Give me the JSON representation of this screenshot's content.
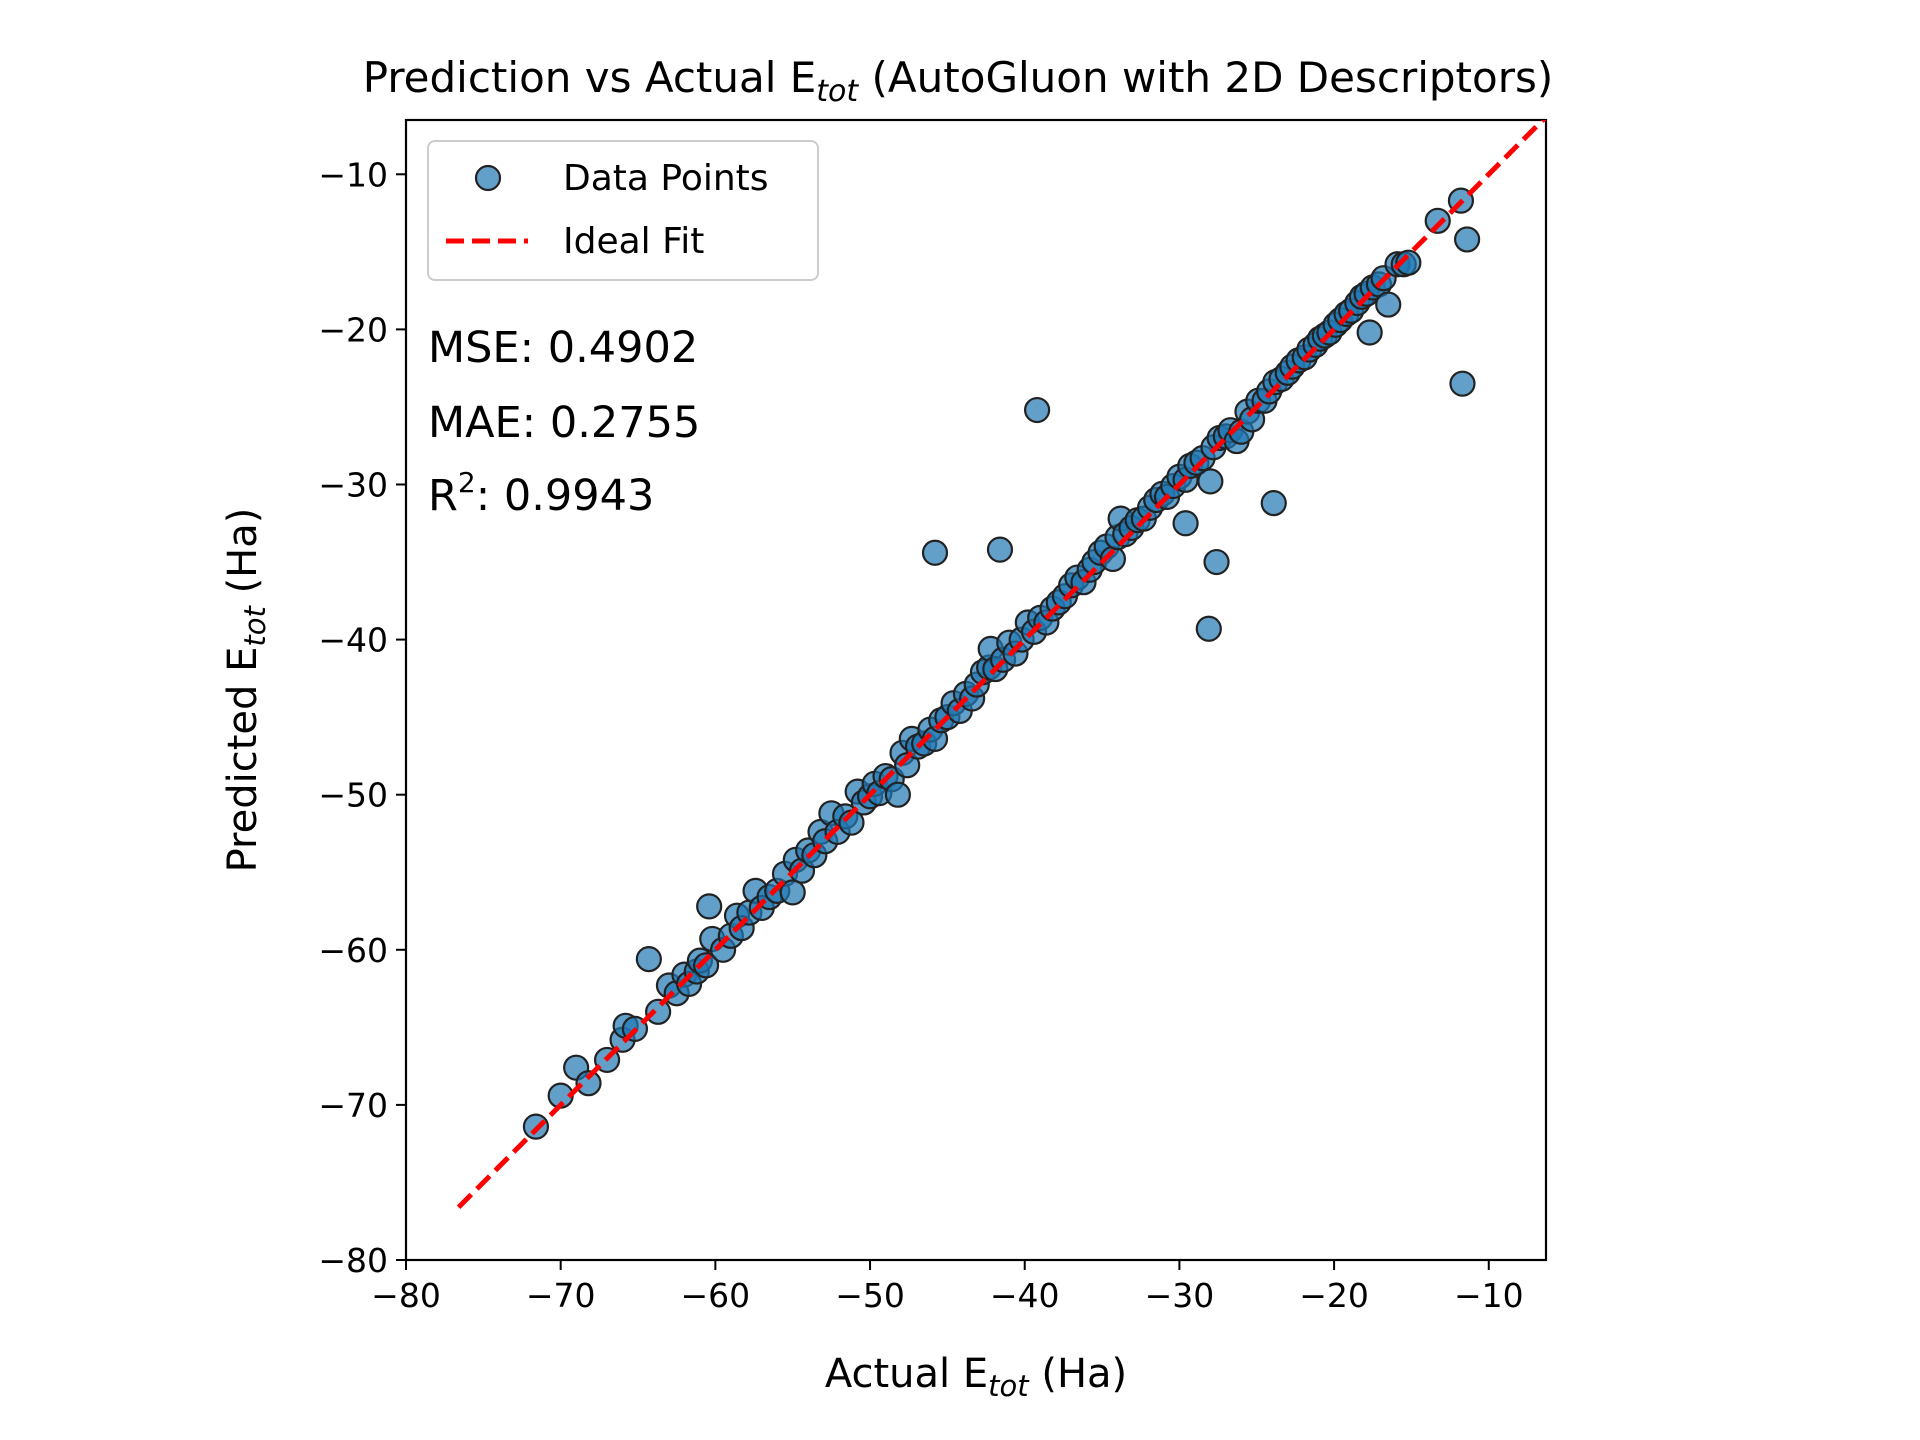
{
  "chart_data": {
    "type": "scatter",
    "title": {
      "main": "Prediction vs Actual E",
      "sub": "tot",
      "rest": " (AutoGluon with 2D Descriptors)"
    },
    "xlabel": {
      "main": "Actual E",
      "sub": "tot",
      "rest": " (Ha)"
    },
    "ylabel": {
      "main": "Predicted E",
      "sub": "tot",
      "rest": " (Ha)"
    },
    "xlim": [
      -80,
      -6.3
    ],
    "ylim": [
      -80,
      -6.5
    ],
    "xticks": [
      -80,
      -70,
      -60,
      -50,
      -40,
      -30,
      -20,
      -10
    ],
    "yticks": [
      -80,
      -70,
      -60,
      -50,
      -40,
      -30,
      -20,
      -10
    ],
    "xtick_labels": [
      "−80",
      "−70",
      "−60",
      "−50",
      "−40",
      "−30",
      "−20",
      "−10"
    ],
    "ytick_labels": [
      "−80",
      "−70",
      "−60",
      "−50",
      "−40",
      "−30",
      "−20",
      "−10"
    ],
    "grid": false,
    "legend": {
      "position": "top-left",
      "entries": [
        {
          "label": "Data Points",
          "kind": "marker",
          "color": "#1f77b4"
        },
        {
          "label": "Ideal Fit",
          "kind": "dashed-line",
          "color": "#ff0000"
        }
      ]
    },
    "stats": [
      {
        "label": "MSE: ",
        "value": "0.4902",
        "sup": ""
      },
      {
        "label": "MAE: ",
        "value": "0.2755",
        "sup": ""
      },
      {
        "label": "R",
        "value": ": 0.9943",
        "sup": "2"
      }
    ],
    "ideal_fit": {
      "x": [
        -76.6,
        -6.3
      ],
      "y": [
        -76.6,
        -6.3
      ],
      "color": "#ff0000",
      "style": "dashed"
    },
    "marker_color": "#1f77b4",
    "marker_edge": "#222222",
    "series": [
      {
        "name": "Data Points",
        "points": [
          [
            -71.6,
            -71.4
          ],
          [
            -70.0,
            -69.4
          ],
          [
            -69.0,
            -67.6
          ],
          [
            -68.2,
            -68.6
          ],
          [
            -67.0,
            -67.1
          ],
          [
            -66.0,
            -65.8
          ],
          [
            -65.8,
            -64.9
          ],
          [
            -65.2,
            -65.1
          ],
          [
            -64.3,
            -60.6
          ],
          [
            -63.7,
            -64.0
          ],
          [
            -63.0,
            -62.3
          ],
          [
            -62.5,
            -62.8
          ],
          [
            -62.0,
            -61.6
          ],
          [
            -61.7,
            -62.2
          ],
          [
            -61.2,
            -61.4
          ],
          [
            -61.0,
            -60.7
          ],
          [
            -60.6,
            -61.0
          ],
          [
            -60.4,
            -57.2
          ],
          [
            -60.2,
            -59.3
          ],
          [
            -59.5,
            -60.0
          ],
          [
            -59.0,
            -59.1
          ],
          [
            -58.6,
            -57.8
          ],
          [
            -58.3,
            -58.6
          ],
          [
            -57.8,
            -57.6
          ],
          [
            -57.4,
            -56.2
          ],
          [
            -57.0,
            -57.3
          ],
          [
            -56.5,
            -56.6
          ],
          [
            -56.0,
            -56.2
          ],
          [
            -55.5,
            -55.1
          ],
          [
            -55.0,
            -56.3
          ],
          [
            -54.8,
            -54.2
          ],
          [
            -54.4,
            -54.9
          ],
          [
            -54.0,
            -53.6
          ],
          [
            -53.6,
            -53.9
          ],
          [
            -53.2,
            -52.4
          ],
          [
            -52.9,
            -53.0
          ],
          [
            -52.5,
            -51.2
          ],
          [
            -52.1,
            -52.4
          ],
          [
            -51.6,
            -51.4
          ],
          [
            -51.2,
            -51.8
          ],
          [
            -50.8,
            -49.8
          ],
          [
            -50.4,
            -50.5
          ],
          [
            -50.0,
            -50.1
          ],
          [
            -49.7,
            -49.3
          ],
          [
            -49.4,
            -49.9
          ],
          [
            -49.0,
            -48.8
          ],
          [
            -48.6,
            -49.0
          ],
          [
            -48.2,
            -50.0
          ],
          [
            -47.9,
            -47.3
          ],
          [
            -47.6,
            -48.1
          ],
          [
            -47.3,
            -46.4
          ],
          [
            -46.9,
            -46.9
          ],
          [
            -46.5,
            -46.7
          ],
          [
            -46.1,
            -45.8
          ],
          [
            -45.8,
            -46.4
          ],
          [
            -45.8,
            -34.4
          ],
          [
            -45.4,
            -45.2
          ],
          [
            -45.0,
            -45.0
          ],
          [
            -44.6,
            -44.1
          ],
          [
            -44.2,
            -44.6
          ],
          [
            -43.8,
            -43.5
          ],
          [
            -43.4,
            -43.8
          ],
          [
            -43.1,
            -42.9
          ],
          [
            -42.7,
            -42.1
          ],
          [
            -42.3,
            -41.8
          ],
          [
            -42.2,
            -40.6
          ],
          [
            -41.9,
            -41.9
          ],
          [
            -41.6,
            -34.2
          ],
          [
            -41.4,
            -41.3
          ],
          [
            -41.0,
            -40.2
          ],
          [
            -40.6,
            -40.9
          ],
          [
            -40.2,
            -40.0
          ],
          [
            -39.8,
            -38.9
          ],
          [
            -39.4,
            -39.5
          ],
          [
            -39.2,
            -25.2
          ],
          [
            -39.0,
            -38.6
          ],
          [
            -38.6,
            -38.9
          ],
          [
            -38.2,
            -38.0
          ],
          [
            -37.8,
            -37.6
          ],
          [
            -37.4,
            -37.2
          ],
          [
            -37.0,
            -36.5
          ],
          [
            -36.6,
            -36.0
          ],
          [
            -36.2,
            -36.3
          ],
          [
            -35.8,
            -35.5
          ],
          [
            -35.5,
            -35.0
          ],
          [
            -35.1,
            -34.4
          ],
          [
            -34.7,
            -34.0
          ],
          [
            -34.3,
            -34.8
          ],
          [
            -34.0,
            -33.4
          ],
          [
            -33.8,
            -32.2
          ],
          [
            -33.5,
            -33.2
          ],
          [
            -33.1,
            -32.8
          ],
          [
            -32.7,
            -32.3
          ],
          [
            -32.3,
            -32.2
          ],
          [
            -31.9,
            -31.5
          ],
          [
            -31.5,
            -31.0
          ],
          [
            -31.1,
            -30.6
          ],
          [
            -30.8,
            -30.8
          ],
          [
            -30.4,
            -30.1
          ],
          [
            -30.0,
            -29.5
          ],
          [
            -29.6,
            -29.7
          ],
          [
            -29.6,
            -32.5
          ],
          [
            -29.3,
            -28.8
          ],
          [
            -28.9,
            -28.6
          ],
          [
            -28.5,
            -28.3
          ],
          [
            -28.1,
            -39.3
          ],
          [
            -28.0,
            -29.8
          ],
          [
            -27.8,
            -27.6
          ],
          [
            -27.6,
            -35.0
          ],
          [
            -27.4,
            -27.0
          ],
          [
            -27.0,
            -26.9
          ],
          [
            -26.7,
            -26.5
          ],
          [
            -26.3,
            -27.2
          ],
          [
            -26.0,
            -26.6
          ],
          [
            -25.6,
            -25.3
          ],
          [
            -25.3,
            -25.8
          ],
          [
            -24.9,
            -24.6
          ],
          [
            -24.5,
            -24.6
          ],
          [
            -24.2,
            -24.0
          ],
          [
            -23.9,
            -31.2
          ],
          [
            -23.8,
            -23.4
          ],
          [
            -23.4,
            -23.2
          ],
          [
            -23.0,
            -22.8
          ],
          [
            -22.7,
            -22.4
          ],
          [
            -22.3,
            -22.0
          ],
          [
            -21.9,
            -21.8
          ],
          [
            -21.6,
            -21.3
          ],
          [
            -21.2,
            -21.0
          ],
          [
            -20.9,
            -20.6
          ],
          [
            -20.6,
            -20.4
          ],
          [
            -20.3,
            -20.2
          ],
          [
            -19.9,
            -19.7
          ],
          [
            -19.6,
            -19.4
          ],
          [
            -19.2,
            -19.0
          ],
          [
            -18.9,
            -18.8
          ],
          [
            -18.5,
            -18.3
          ],
          [
            -18.2,
            -17.9
          ],
          [
            -17.9,
            -17.7
          ],
          [
            -17.7,
            -20.2
          ],
          [
            -17.5,
            -17.3
          ],
          [
            -17.1,
            -17.1
          ],
          [
            -16.8,
            -16.7
          ],
          [
            -16.5,
            -18.4
          ],
          [
            -15.9,
            -15.8
          ],
          [
            -15.5,
            -15.8
          ],
          [
            -15.2,
            -15.7
          ],
          [
            -13.3,
            -13.0
          ],
          [
            -11.8,
            -11.7
          ],
          [
            -11.7,
            -23.5
          ],
          [
            -11.4,
            -14.2
          ]
        ]
      }
    ]
  }
}
